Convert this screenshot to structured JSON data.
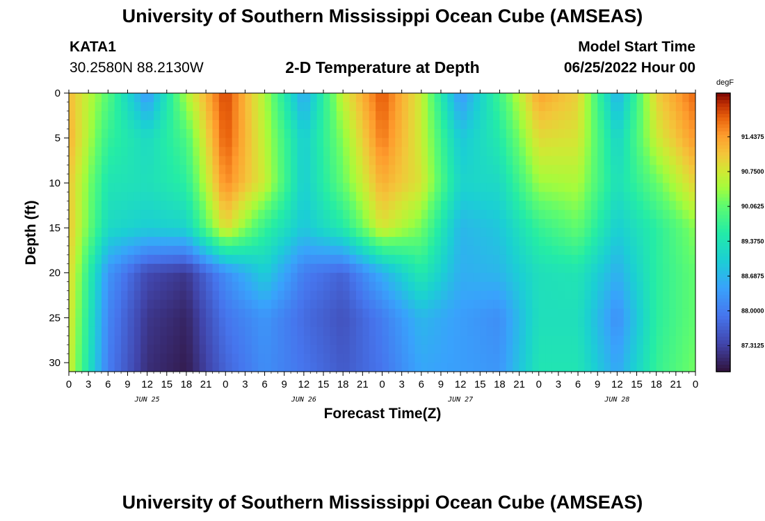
{
  "header": {
    "title": "University of Southern Mississippi Ocean Cube (AMSEAS)",
    "station": "KATA1",
    "coords": "30.2580N  88.2130W",
    "subtitle": "2-D Temperature at Depth",
    "model_label": "Model Start Time",
    "model_time": "06/25/2022 Hour 00"
  },
  "footer": {
    "title": "University of Southern Mississippi Ocean Cube (AMSEAS)"
  },
  "chart_data": {
    "type": "heatmap",
    "title": "2-D Temperature at Depth",
    "xlabel": "Forecast Time(Z)",
    "ylabel": "Depth (ft)",
    "xlim": [
      0,
      96
    ],
    "ylim": [
      0,
      31
    ],
    "x_tick_values": [
      0,
      3,
      6,
      9,
      12,
      15,
      18,
      21,
      24,
      27,
      30,
      33,
      36,
      39,
      42,
      45,
      48,
      51,
      54,
      57,
      60,
      63,
      66,
      69,
      72,
      75,
      78,
      81,
      84,
      87,
      90,
      93,
      96
    ],
    "x_tick_labels": [
      "0",
      "3",
      "6",
      "9",
      "12",
      "15",
      "18",
      "21",
      "0",
      "3",
      "6",
      "9",
      "12",
      "15",
      "18",
      "21",
      "0",
      "3",
      "6",
      "9",
      "12",
      "15",
      "18",
      "21",
      "0",
      "3",
      "6",
      "9",
      "12",
      "15",
      "18",
      "21",
      "0"
    ],
    "date_labels": [
      {
        "hour": 12,
        "label": "JUN 25"
      },
      {
        "hour": 36,
        "label": "JUN 26"
      },
      {
        "hour": 60,
        "label": "JUN 27"
      },
      {
        "hour": 84,
        "label": "JUN 28"
      }
    ],
    "y_tick_values": [
      0,
      5,
      10,
      15,
      20,
      25,
      30
    ],
    "y_tick_labels": [
      "0",
      "5",
      "10",
      "15",
      "20",
      "25",
      "30"
    ],
    "colorbar": {
      "unit": "degF",
      "min": 86.8,
      "max": 92.3,
      "tick_values": [
        91.4375,
        90.75,
        90.0625,
        89.375,
        88.6875,
        88.0,
        87.3125
      ],
      "tick_labels": [
        "91.4375",
        "90.7500",
        "90.0625",
        "89.3750",
        "88.6875",
        "88.0000",
        "87.3125"
      ]
    },
    "hours": [
      0,
      6,
      12,
      18,
      24,
      30,
      36,
      42,
      48,
      54,
      60,
      66,
      72,
      78,
      84,
      90,
      96
    ],
    "depths": [
      0,
      5,
      10,
      15,
      20,
      25,
      31
    ],
    "temperature_grid": [
      [
        91.2,
        91.3,
        91.1,
        91.1,
        91.0,
        90.9,
        90.8
      ],
      [
        90.0,
        89.7,
        89.4,
        89.2,
        88.3,
        88.1,
        88.0
      ],
      [
        88.3,
        89.2,
        89.3,
        89.0,
        87.4,
        87.2,
        87.1
      ],
      [
        90.5,
        89.9,
        89.6,
        89.1,
        87.2,
        87.0,
        86.9
      ],
      [
        92.0,
        91.9,
        91.6,
        90.9,
        88.2,
        87.9,
        87.7
      ],
      [
        90.5,
        90.6,
        90.7,
        89.7,
        89.0,
        88.3,
        88.2
      ],
      [
        88.5,
        89.0,
        89.0,
        88.9,
        88.0,
        87.8,
        87.9
      ],
      [
        90.7,
        90.3,
        90.1,
        89.5,
        87.7,
        87.5,
        87.6
      ],
      [
        91.9,
        91.7,
        91.3,
        90.8,
        88.6,
        88.0,
        87.9
      ],
      [
        90.7,
        90.7,
        90.8,
        90.2,
        89.5,
        88.7,
        88.5
      ],
      [
        88.3,
        88.9,
        89.1,
        88.7,
        88.6,
        88.4,
        88.4
      ],
      [
        89.8,
        89.5,
        89.2,
        88.9,
        88.7,
        88.2,
        88.3
      ],
      [
        91.4,
        90.9,
        90.4,
        89.7,
        89.3,
        89.3,
        89.4
      ],
      [
        91.0,
        90.8,
        90.5,
        90.1,
        89.4,
        89.3,
        89.4
      ],
      [
        88.6,
        89.1,
        89.3,
        89.0,
        88.6,
        88.2,
        88.5
      ],
      [
        91.0,
        90.7,
        90.1,
        89.6,
        89.6,
        89.6,
        89.7
      ],
      [
        91.8,
        91.5,
        91.0,
        90.3,
        90.1,
        90.1,
        90.2
      ]
    ]
  }
}
